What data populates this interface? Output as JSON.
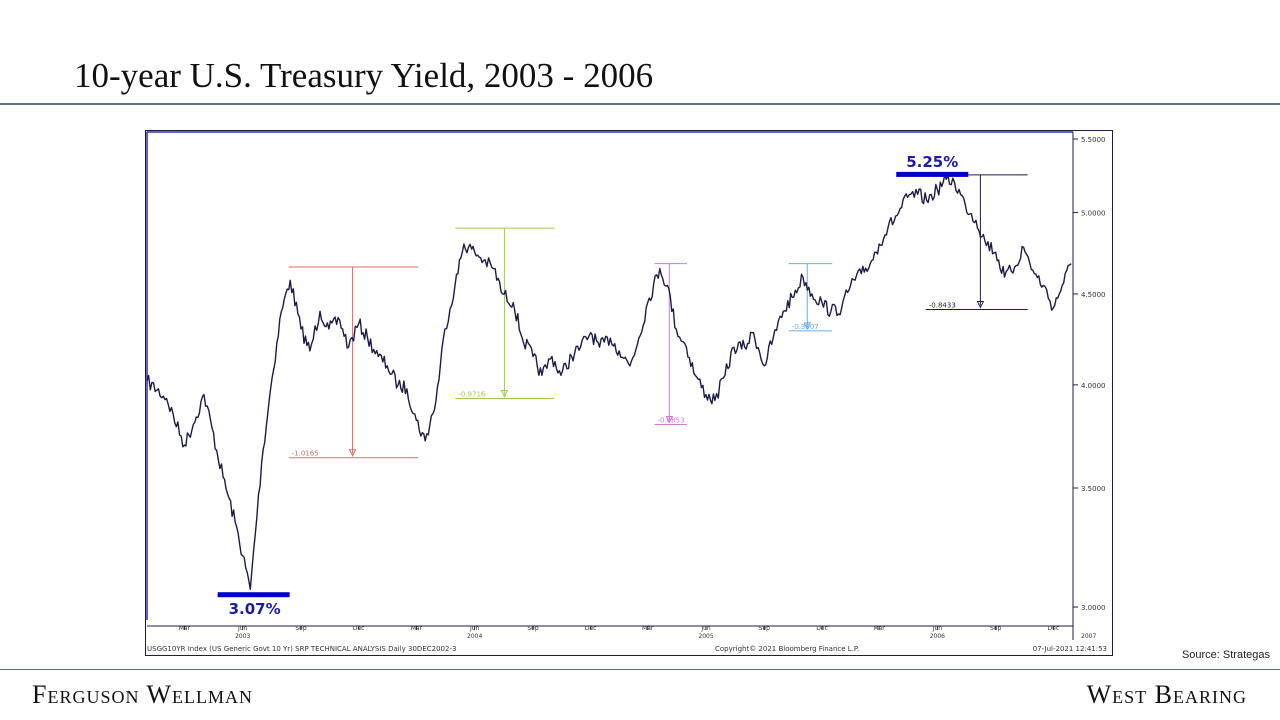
{
  "slide": {
    "title": "10-year U.S. Treasury Yield, 2003 - 2006",
    "source": "Source: Strategas",
    "brand_left": "Ferguson Wellman",
    "brand_right": "West Bearing"
  },
  "chart_data": {
    "type": "line",
    "title": "",
    "xlabel": "",
    "ylabel": "",
    "ylim": [
      2.95,
      5.55
    ],
    "y_scale": "log",
    "grid": false,
    "y_ticks": [
      "5.5000",
      "5.0000",
      "4.5000",
      "4.0000",
      "3.5000",
      "3.0000"
    ],
    "x_month_ticks": [
      "Mar",
      "Jun",
      "Sep",
      "Dec",
      "Mar",
      "Jun",
      "Sep",
      "Dec",
      "Mar",
      "Jun",
      "Sep",
      "Dec",
      "Mar",
      "Jun",
      "Sep",
      "Dec"
    ],
    "x_year_labels": [
      "2003",
      "2004",
      "2005",
      "2006",
      "2007"
    ],
    "bottom_left_text": "USGG10YR Index (US Generic Govt 10 Yr) SRP TECHNICAL ANALYSIS  Daily 30DEC2002-3",
    "bottom_center_text": "Copyright© 2021 Bloomberg Finance L.P.",
    "bottom_right_text": "07-Jul-2021 12:41:53",
    "series": [
      {
        "color": "#1c1c4a",
        "x": [
          "2003-01-01",
          "2003-02-01",
          "2003-03-01",
          "2003-03-15",
          "2003-04-01",
          "2003-05-01",
          "2003-05-20",
          "2003-06-13",
          "2003-07-01",
          "2003-07-15",
          "2003-08-01",
          "2003-08-15",
          "2003-09-01",
          "2003-09-15",
          "2003-10-01",
          "2003-10-15",
          "2003-11-01",
          "2003-11-15",
          "2003-12-01",
          "2003-12-15",
          "2004-01-01",
          "2004-01-15",
          "2004-02-01",
          "2004-02-15",
          "2004-03-01",
          "2004-03-15",
          "2004-04-01",
          "2004-04-15",
          "2004-05-01",
          "2004-05-15",
          "2004-06-01",
          "2004-06-15",
          "2004-07-01",
          "2004-07-15",
          "2004-08-01",
          "2004-08-15",
          "2004-09-01",
          "2004-09-15",
          "2004-10-01",
          "2004-10-15",
          "2004-11-01",
          "2004-11-15",
          "2004-12-01",
          "2004-12-15",
          "2005-01-01",
          "2005-01-15",
          "2005-02-01",
          "2005-02-15",
          "2005-03-01",
          "2005-03-20",
          "2005-04-01",
          "2005-04-15",
          "2005-05-01",
          "2005-05-15",
          "2005-06-01",
          "2005-06-15",
          "2005-07-01",
          "2005-07-15",
          "2005-08-01",
          "2005-08-15",
          "2005-09-01",
          "2005-09-15",
          "2005-10-01",
          "2005-10-15",
          "2005-11-01",
          "2005-11-15",
          "2005-12-01",
          "2005-12-15",
          "2006-01-01",
          "2006-01-15",
          "2006-02-01",
          "2006-02-15",
          "2006-03-01",
          "2006-03-15",
          "2006-04-01",
          "2006-04-15",
          "2006-05-01",
          "2006-05-15",
          "2006-06-01",
          "2006-06-15",
          "2006-06-28",
          "2006-07-15",
          "2006-08-01",
          "2006-08-15",
          "2006-09-01",
          "2006-09-15",
          "2006-10-01",
          "2006-10-15",
          "2006-11-01",
          "2006-11-15",
          "2006-12-01",
          "2006-12-15",
          "2006-12-29"
        ],
        "y": [
          4.02,
          3.93,
          3.7,
          3.8,
          3.95,
          3.55,
          3.35,
          3.07,
          3.62,
          3.98,
          4.4,
          4.58,
          4.3,
          4.18,
          4.4,
          4.3,
          4.35,
          4.2,
          4.33,
          4.25,
          4.15,
          4.1,
          4.0,
          3.98,
          3.82,
          3.72,
          3.92,
          4.3,
          4.55,
          4.8,
          4.75,
          4.7,
          4.65,
          4.5,
          4.45,
          4.25,
          4.15,
          4.05,
          4.15,
          4.05,
          4.15,
          4.2,
          4.28,
          4.2,
          4.25,
          4.18,
          4.1,
          4.25,
          4.45,
          4.65,
          4.55,
          4.3,
          4.2,
          4.05,
          3.95,
          3.92,
          4.05,
          4.2,
          4.2,
          4.28,
          4.1,
          4.25,
          4.4,
          4.48,
          4.6,
          4.5,
          4.45,
          4.4,
          4.42,
          4.55,
          4.62,
          4.68,
          4.8,
          4.9,
          5.0,
          5.1,
          5.12,
          5.08,
          5.15,
          5.22,
          5.2,
          5.05,
          4.95,
          4.82,
          4.75,
          4.6,
          4.66,
          4.78,
          4.62,
          4.55,
          4.42,
          4.55,
          4.68
        ]
      }
    ],
    "annotations": {
      "low_label": "3.07%",
      "high_label": "5.25%",
      "drawdowns": [
        {
          "label": "-1.0165",
          "color": "#e06a6a",
          "top": 4.66,
          "bottom": 3.64
        },
        {
          "label": "-0.9716",
          "color": "#9acd4a",
          "top": 4.9,
          "bottom": 3.93
        },
        {
          "label": "-0.8853",
          "color": "#d27ad2",
          "top": 4.68,
          "bottom": 3.8
        },
        {
          "label": "-0.3907",
          "color": "#6aaee8",
          "top": 4.68,
          "bottom": 4.29
        },
        {
          "label": "-0.8433",
          "color": "#1c1c4a",
          "top": 5.25,
          "bottom": 4.41
        }
      ]
    }
  }
}
